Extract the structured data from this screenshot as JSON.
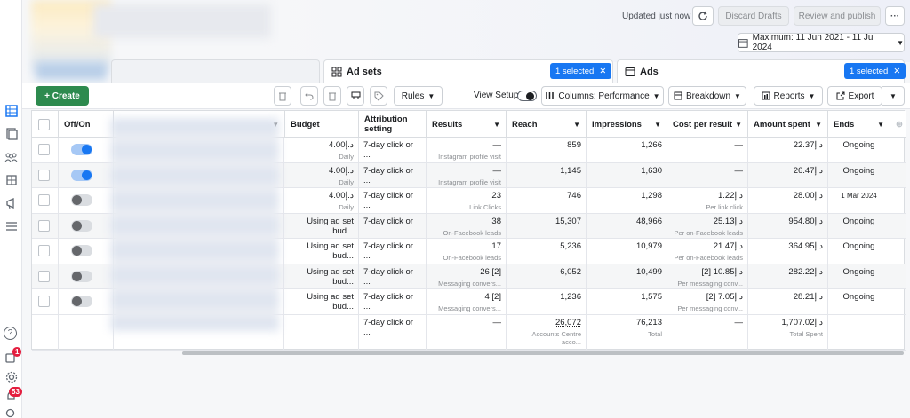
{
  "header": {
    "updated_label": "Updated just now",
    "discard_label": "Discard Drafts",
    "review_label": "Review and publish",
    "more_label": "···",
    "date_range": "Maximum: 11 Jun 2021 - 11 Jul 2024"
  },
  "tabs": {
    "adsets_label": "Ad sets",
    "adsets_selected": "1 selected",
    "ads_label": "Ads",
    "ads_selected": "1 selected",
    "close_glyph": "✕"
  },
  "toolbar": {
    "create_label": "+ Create",
    "rules_label": "Rules",
    "view_setup_label": "View Setup",
    "columns_label": "Columns: Performance",
    "breakdown_label": "Breakdown",
    "reports_label": "Reports",
    "export_label": "Export"
  },
  "sidebar": {
    "notifications_badge": "1",
    "alerts_badge": "53",
    "help_glyph": "?"
  },
  "columns": {
    "offon": "Off/On",
    "budget": "Budget",
    "attribution_line1": "Attribution",
    "attribution_line2": "setting",
    "results": "Results",
    "reach": "Reach",
    "impressions": "Impressions",
    "cpr": "Cost per result",
    "spent": "Amount spent",
    "ends": "Ends"
  },
  "rows": [
    {
      "on": true,
      "budget": "د.إ4.00",
      "budget_sub": "Daily",
      "attr": "7-day click or ...",
      "results": "—",
      "results_sub": "Instagram profile visit",
      "reach": "859",
      "impressions": "1,266",
      "cpr": "—",
      "cpr_sub": "",
      "spent": "د.إ22.37",
      "ends": "Ongoing"
    },
    {
      "on": true,
      "budget": "د.إ4.00",
      "budget_sub": "Daily",
      "attr": "7-day click or ...",
      "results": "—",
      "results_sub": "Instagram profile visit",
      "reach": "1,145",
      "impressions": "1,630",
      "cpr": "—",
      "cpr_sub": "",
      "spent": "د.إ26.47",
      "ends": "Ongoing"
    },
    {
      "on": false,
      "budget": "د.إ4.00",
      "budget_sub": "Daily",
      "attr": "7-day click or ...",
      "results": "23",
      "results_sub": "Link Clicks",
      "reach": "746",
      "impressions": "1,298",
      "cpr": "د.إ1.22",
      "cpr_sub": "Per link click",
      "spent": "د.إ28.00",
      "ends": "1 Mar 2024"
    },
    {
      "on": false,
      "budget": "Using ad set bud...",
      "budget_sub": "",
      "attr": "7-day click or ...",
      "results": "38",
      "results_sub": "On-Facebook leads",
      "reach": "15,307",
      "impressions": "48,966",
      "cpr": "د.إ25.13",
      "cpr_sub": "Per on-Facebook leads",
      "spent": "د.إ954.80",
      "ends": "Ongoing"
    },
    {
      "on": false,
      "budget": "Using ad set bud...",
      "budget_sub": "",
      "attr": "7-day click or ...",
      "results": "17",
      "results_sub": "On-Facebook leads",
      "reach": "5,236",
      "impressions": "10,979",
      "cpr": "د.إ21.47",
      "cpr_sub": "Per on-Facebook leads",
      "spent": "د.إ364.95",
      "ends": "Ongoing"
    },
    {
      "on": false,
      "budget": "Using ad set bud...",
      "budget_sub": "",
      "attr": "7-day click or ...",
      "results": "26 [2]",
      "results_sub": "Messaging convers...",
      "reach": "6,052",
      "impressions": "10,499",
      "cpr": "د.إ10.85 [2]",
      "cpr_sub": "Per messaging conv...",
      "spent": "د.إ282.22",
      "ends": "Ongoing"
    },
    {
      "on": false,
      "budget": "Using ad set bud...",
      "budget_sub": "",
      "attr": "7-day click or ...",
      "results": "4 [2]",
      "results_sub": "Messaging convers...",
      "reach": "1,236",
      "impressions": "1,575",
      "cpr": "د.إ7.05 [2]",
      "cpr_sub": "Per messaging conv...",
      "spent": "د.إ28.21",
      "ends": "Ongoing"
    }
  ],
  "totals": {
    "attr": "7-day click or ...",
    "results": "—",
    "reach": "26,072",
    "reach_sub": "Accounts Centre acco...",
    "impressions": "76,213",
    "impressions_sub": "Total",
    "cpr": "—",
    "spent": "د.إ1,707.02",
    "spent_sub": "Total Spent"
  }
}
